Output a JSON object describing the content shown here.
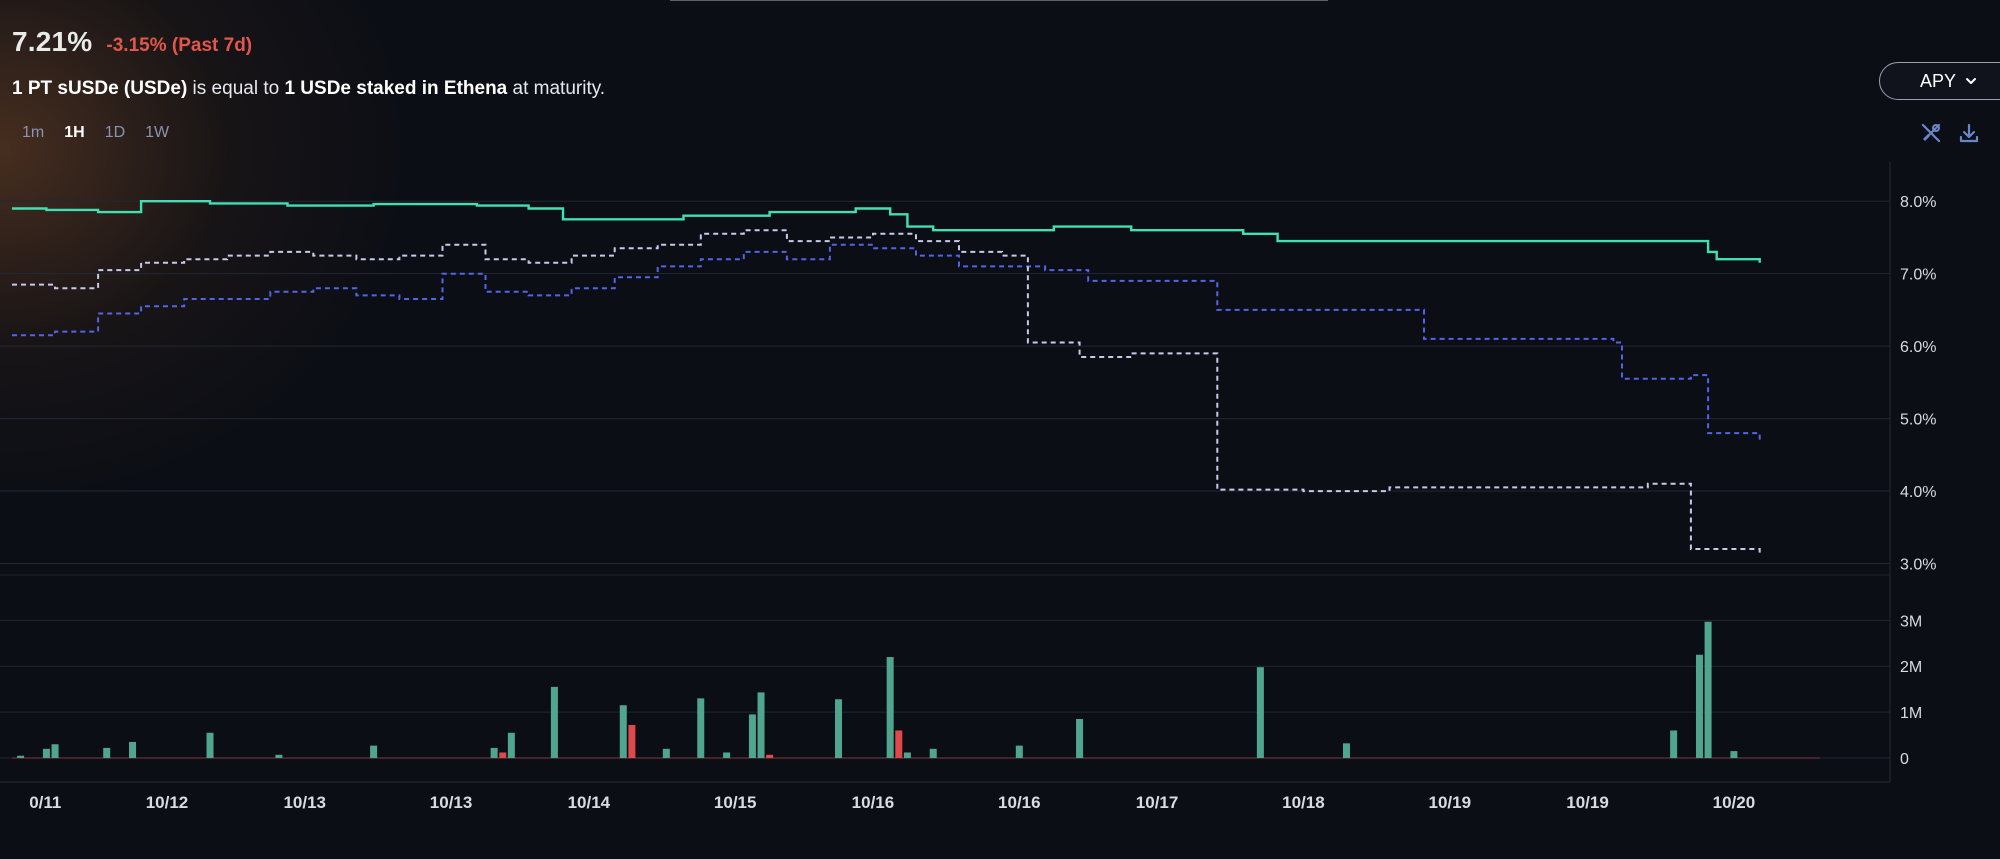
{
  "header": {
    "apy_value": "7.21%",
    "apy_change": "-3.15% (Past 7d)"
  },
  "description": {
    "p1": "1 PT sUSDe (USDe)",
    "p2": " is equal to ",
    "p3": "1 USDe staked in Ethena",
    "p4": " at maturity."
  },
  "intervals": [
    "1m",
    "1H",
    "1D",
    "1W"
  ],
  "active_interval": "1H",
  "metric_select": {
    "label": "APY"
  },
  "icons": {
    "tools": "tools-icon",
    "download": "download-icon"
  },
  "colors": {
    "implied": "#3fe0b3",
    "underlying_dotted": "#c9c8ea",
    "blue_dotted": "#5364e8",
    "bar_up": "#4fa58e",
    "bar_down": "#e0484b",
    "grid": "#232736",
    "axis_text": "#d8dbe3"
  },
  "chart_data": {
    "type": "line",
    "title": "",
    "apy_axis": {
      "ylim": [
        2.8,
        8.5
      ],
      "ticks": [
        8,
        7,
        6,
        5,
        4,
        3
      ],
      "tick_labels": [
        "8.0%",
        "7.0%",
        "6.0%",
        "5.0%",
        "4.0%",
        "3.0%"
      ]
    },
    "volume_axis": {
      "ylim": [
        0,
        3.4
      ],
      "ticks": [
        3,
        2,
        1,
        0
      ],
      "tick_labels": [
        "3M",
        "2M",
        "1M",
        "0"
      ]
    },
    "x_range": [
      0,
      210
    ],
    "x_ticks": [
      {
        "x": 2,
        "label": "0/11"
      },
      {
        "x": 18,
        "label": "10/12"
      },
      {
        "x": 34,
        "label": "10/13"
      },
      {
        "x": 51,
        "label": "10/13"
      },
      {
        "x": 67,
        "label": "10/14"
      },
      {
        "x": 84,
        "label": "10/15"
      },
      {
        "x": 100,
        "label": "10/16"
      },
      {
        "x": 117,
        "label": "10/16"
      },
      {
        "x": 133,
        "label": "10/17"
      },
      {
        "x": 150,
        "label": "10/18"
      },
      {
        "x": 167,
        "label": "10/19"
      },
      {
        "x": 183,
        "label": "10/19"
      },
      {
        "x": 200,
        "label": "10/20"
      }
    ],
    "series": [
      {
        "name": "implied",
        "style": "solid",
        "points": [
          [
            0,
            7.9
          ],
          [
            4,
            7.88
          ],
          [
            10,
            7.85
          ],
          [
            15,
            8.0
          ],
          [
            23,
            7.97
          ],
          [
            32,
            7.94
          ],
          [
            42,
            7.96
          ],
          [
            54,
            7.94
          ],
          [
            60,
            7.9
          ],
          [
            64,
            7.75
          ],
          [
            78,
            7.8
          ],
          [
            88,
            7.85
          ],
          [
            98,
            7.9
          ],
          [
            102,
            7.82
          ],
          [
            104,
            7.65
          ],
          [
            107,
            7.6
          ],
          [
            110,
            7.6
          ],
          [
            121,
            7.65
          ],
          [
            130,
            7.6
          ],
          [
            143,
            7.55
          ],
          [
            147,
            7.45
          ],
          [
            160,
            7.45
          ],
          [
            172,
            7.45
          ],
          [
            184,
            7.45
          ],
          [
            195,
            7.45
          ],
          [
            197,
            7.3
          ],
          [
            198,
            7.2
          ],
          [
            203,
            7.15
          ]
        ]
      },
      {
        "name": "underlying",
        "style": "dotted",
        "points": [
          [
            0,
            6.85
          ],
          [
            5,
            6.8
          ],
          [
            10,
            7.05
          ],
          [
            15,
            7.15
          ],
          [
            20,
            7.2
          ],
          [
            25,
            7.25
          ],
          [
            30,
            7.3
          ],
          [
            35,
            7.25
          ],
          [
            40,
            7.2
          ],
          [
            45,
            7.25
          ],
          [
            50,
            7.4
          ],
          [
            55,
            7.2
          ],
          [
            60,
            7.15
          ],
          [
            65,
            7.25
          ],
          [
            70,
            7.35
          ],
          [
            75,
            7.4
          ],
          [
            80,
            7.55
          ],
          [
            85,
            7.6
          ],
          [
            90,
            7.45
          ],
          [
            95,
            7.5
          ],
          [
            100,
            7.55
          ],
          [
            105,
            7.45
          ],
          [
            110,
            7.3
          ],
          [
            115,
            7.25
          ],
          [
            117,
            7.25
          ],
          [
            118,
            6.05
          ],
          [
            124,
            5.85
          ],
          [
            130,
            5.9
          ],
          [
            139,
            5.9
          ],
          [
            140,
            4.02
          ],
          [
            150,
            4.0
          ],
          [
            160,
            4.05
          ],
          [
            170,
            4.05
          ],
          [
            180,
            4.05
          ],
          [
            190,
            4.1
          ],
          [
            194,
            4.1
          ],
          [
            195,
            3.2
          ],
          [
            203,
            3.15
          ]
        ]
      },
      {
        "name": "blue",
        "style": "dotted",
        "points": [
          [
            0,
            6.15
          ],
          [
            5,
            6.2
          ],
          [
            10,
            6.45
          ],
          [
            15,
            6.55
          ],
          [
            20,
            6.65
          ],
          [
            25,
            6.65
          ],
          [
            30,
            6.75
          ],
          [
            35,
            6.8
          ],
          [
            40,
            6.7
          ],
          [
            45,
            6.65
          ],
          [
            50,
            7.0
          ],
          [
            55,
            6.75
          ],
          [
            60,
            6.7
          ],
          [
            65,
            6.8
          ],
          [
            70,
            6.95
          ],
          [
            75,
            7.1
          ],
          [
            80,
            7.2
          ],
          [
            85,
            7.3
          ],
          [
            90,
            7.2
          ],
          [
            95,
            7.4
          ],
          [
            100,
            7.35
          ],
          [
            105,
            7.25
          ],
          [
            110,
            7.1
          ],
          [
            120,
            7.05
          ],
          [
            125,
            6.9
          ],
          [
            135,
            6.9
          ],
          [
            140,
            6.5
          ],
          [
            150,
            6.5
          ],
          [
            162,
            6.5
          ],
          [
            164,
            6.1
          ],
          [
            175,
            6.1
          ],
          [
            186,
            6.05
          ],
          [
            187,
            5.55
          ],
          [
            195,
            5.6
          ],
          [
            197,
            4.8
          ],
          [
            203,
            4.7
          ]
        ]
      }
    ],
    "volume_bars": [
      [
        1,
        0.05,
        "up"
      ],
      [
        4,
        0.2,
        "up"
      ],
      [
        5,
        0.3,
        "up"
      ],
      [
        11,
        0.22,
        "up"
      ],
      [
        14,
        0.35,
        "up"
      ],
      [
        23,
        0.55,
        "up"
      ],
      [
        31,
        0.07,
        "up"
      ],
      [
        42,
        0.27,
        "up"
      ],
      [
        56,
        0.22,
        "up"
      ],
      [
        57,
        0.12,
        "down"
      ],
      [
        58,
        0.55,
        "up"
      ],
      [
        63,
        1.55,
        "up"
      ],
      [
        71,
        1.15,
        "up"
      ],
      [
        72,
        0.72,
        "down"
      ],
      [
        76,
        0.2,
        "up"
      ],
      [
        80,
        1.3,
        "up"
      ],
      [
        83,
        0.12,
        "up"
      ],
      [
        86,
        0.95,
        "up"
      ],
      [
        87,
        1.43,
        "up"
      ],
      [
        88,
        0.07,
        "down"
      ],
      [
        96,
        1.28,
        "up"
      ],
      [
        102,
        2.2,
        "up"
      ],
      [
        103,
        0.6,
        "down"
      ],
      [
        104,
        0.12,
        "up"
      ],
      [
        107,
        0.2,
        "up"
      ],
      [
        117,
        0.27,
        "up"
      ],
      [
        124,
        0.85,
        "up"
      ],
      [
        145,
        1.98,
        "up"
      ],
      [
        155,
        0.32,
        "up"
      ],
      [
        193,
        0.6,
        "up"
      ],
      [
        196,
        2.25,
        "up"
      ],
      [
        197,
        2.97,
        "up"
      ],
      [
        200,
        0.15,
        "up"
      ]
    ]
  }
}
